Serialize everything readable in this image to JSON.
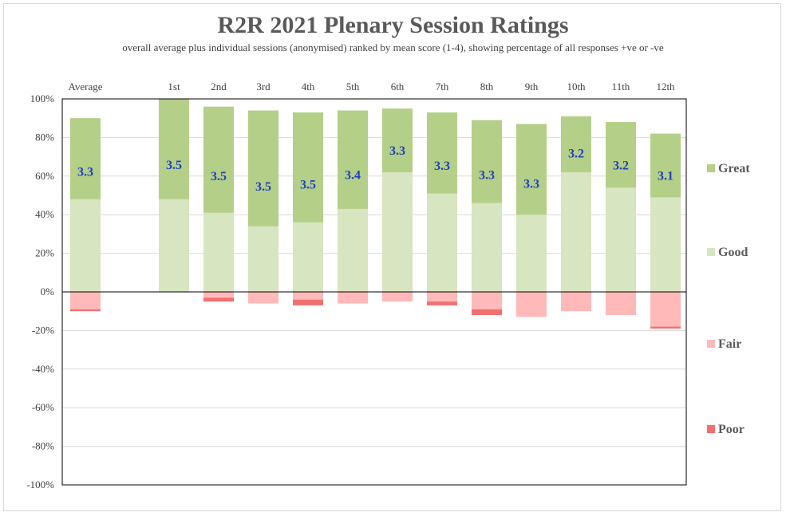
{
  "chart_data": {
    "type": "bar",
    "stacked": true,
    "title": "R2R 2021 Plenary Session Ratings",
    "subtitle": "overall average plus individual  sessions (anonymised) ranked by mean score (1-4), showing percentage of all responses +ve or -ve",
    "xlabel": "",
    "ylabel": "",
    "ylim": [
      -100,
      100
    ],
    "yticks": [
      100,
      80,
      60,
      40,
      20,
      0,
      -20,
      -40,
      -60,
      -80,
      -100
    ],
    "ytick_labels": [
      "100%",
      "80%",
      "60%",
      "40%",
      "20%",
      "0%",
      "-20%",
      "-40%",
      "-60%",
      "-80%",
      "-100%"
    ],
    "categories": [
      "Average",
      "1st",
      "2nd",
      "3rd",
      "4th",
      "5th",
      "6th",
      "7th",
      "8th",
      "9th",
      "10th",
      "11th",
      "12th"
    ],
    "series": [
      {
        "name": "Great",
        "color": "#b4cf88",
        "values": [
          42,
          52,
          55,
          60,
          57,
          51,
          33,
          42,
          43,
          47,
          29,
          34,
          33
        ]
      },
      {
        "name": "Good",
        "color": "#d7e5c0",
        "values": [
          48,
          48,
          41,
          34,
          36,
          43,
          62,
          51,
          46,
          40,
          62,
          54,
          49
        ]
      },
      {
        "name": "Fair",
        "color": "#ffb9b9",
        "values": [
          -9,
          0,
          -3,
          -6,
          -4,
          -6,
          -5,
          -5,
          -9,
          -13,
          -10,
          -12,
          -18
        ]
      },
      {
        "name": "Poor",
        "color": "#f07070",
        "values": [
          -1,
          0,
          -2,
          0,
          -3,
          0,
          0,
          -2,
          -3,
          0,
          0,
          0,
          -1
        ]
      }
    ],
    "mean_scores": [
      "3.3",
      "3.5",
      "3.5",
      "3.5",
      "3.5",
      "3.4",
      "3.3",
      "3.3",
      "3.3",
      "3.3",
      "3.2",
      "3.2",
      "3.1"
    ],
    "legend": [
      "Great",
      "Good",
      "Fair",
      "Poor"
    ],
    "legend_position": "right",
    "grid": true
  }
}
